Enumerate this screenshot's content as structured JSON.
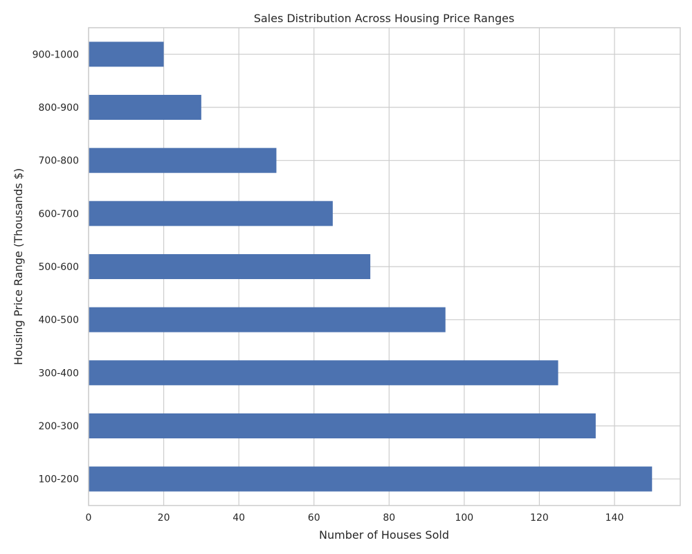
{
  "chart_data": {
    "type": "bar",
    "orientation": "horizontal",
    "title": "Sales Distribution Across Housing Price Ranges",
    "xlabel": "Number of Houses Sold",
    "ylabel": "Housing Price Range (Thousands $)",
    "categories": [
      "100-200",
      "200-300",
      "300-400",
      "400-500",
      "500-600",
      "600-700",
      "700-800",
      "800-900",
      "900-1000"
    ],
    "values": [
      150,
      135,
      125,
      95,
      75,
      65,
      50,
      30,
      20
    ],
    "xlim": [
      0,
      157.5
    ],
    "xticks": [
      0,
      20,
      40,
      60,
      80,
      100,
      120,
      140
    ],
    "grid": true,
    "legend": "none",
    "colors": {
      "bar": "#4c72b0",
      "grid": "#cccccc",
      "text": "#262626"
    }
  }
}
